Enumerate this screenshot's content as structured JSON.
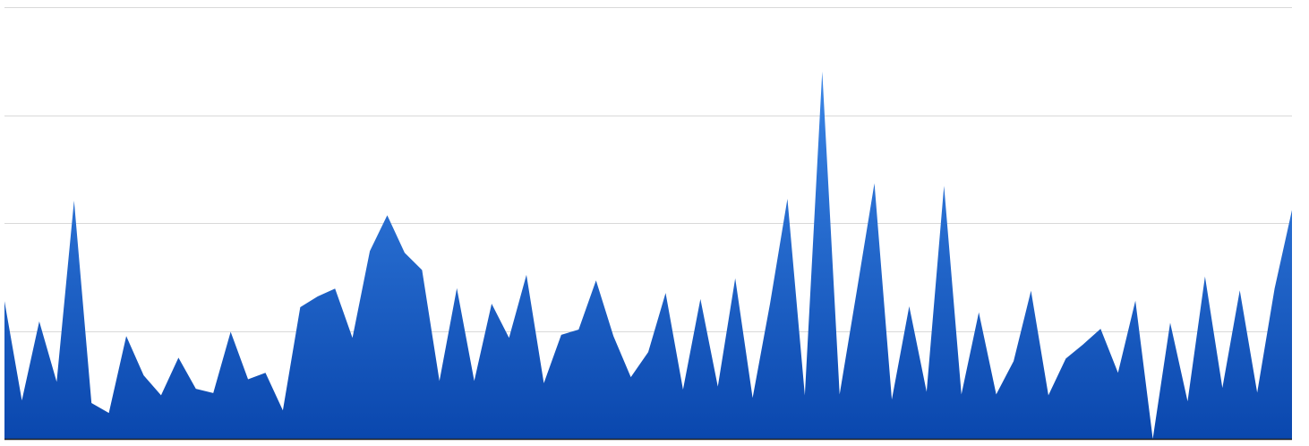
{
  "chart_data": {
    "type": "area",
    "title": "",
    "xlabel": "",
    "ylabel": "",
    "ylim": [
      0,
      100
    ],
    "grid": true,
    "gridlines": [
      0,
      25,
      50,
      75,
      100
    ],
    "legend": "none",
    "colors": {
      "area_top": "#3b86e6",
      "area_bottom": "#0a47ae",
      "grid": "#d9d9d9",
      "axis": "#222222",
      "background": "#ffffff"
    },
    "series": [
      {
        "values": [
          31.9,
          8.9,
          27.2,
          13.2,
          55.2,
          8.3,
          6.0,
          23.8,
          14.7,
          10.1,
          18.8,
          11.6,
          10.6,
          24.8,
          13.8,
          15.3,
          6.6,
          30.5,
          33.0,
          34.8,
          23.4,
          43.5,
          51.8,
          43.1,
          39.1,
          13.4,
          34.9,
          13.4,
          31.3,
          23.4,
          38.0,
          12.9,
          24.1,
          25.3,
          36.7,
          23.8,
          14.3,
          20.1,
          33.8,
          11.4,
          32.4,
          12.1,
          37.2,
          9.5,
          31.3,
          55.6,
          10.1,
          85.1,
          10.3,
          34.6,
          59.2,
          9.1,
          30.7,
          10.9,
          58.6,
          10.3,
          29.3,
          10.3,
          18.0,
          34.3,
          10.1,
          18.6,
          21.9,
          25.5,
          15.3,
          32.0,
          0.0,
          26.9,
          8.7,
          37.6,
          11.8,
          34.4,
          10.7,
          34.8,
          53.0
        ]
      }
    ]
  }
}
